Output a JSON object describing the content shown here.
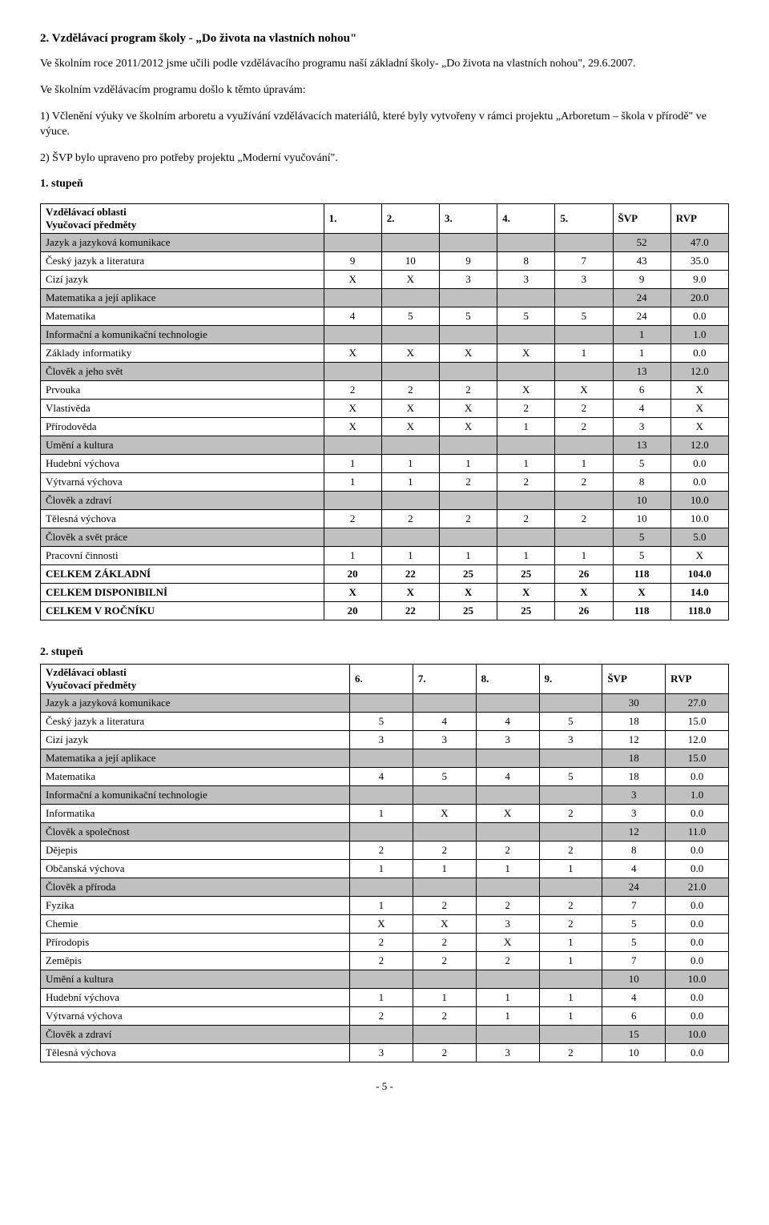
{
  "section_title": "2. Vzdělávací program školy - „Do života na vlastních nohou\"",
  "intro_p1": "Ve školním roce 2011/2012 jsme učili podle vzdělávacího programu naší základní školy- „Do života na vlastních nohou\", 29.6.2007.",
  "intro_p2": "Ve školním vzdělávacím programu došlo k těmto úpravám:",
  "list1": "1) Včlenění výuky ve školním arboretu a využívání vzdělávacích materiálů, které byly vytvořeny v rámci projektu „Arboretum – škola v přírodě\" ve výuce.",
  "list2": "2) ŠVP bylo upraveno pro potřeby projektu „Moderní vyučování\".",
  "stage1_label": "1. stupeň",
  "t1": {
    "header_label1": "Vzdělávací oblasti",
    "header_label2": "Vyučovací předměty",
    "cols": [
      "1.",
      "2.",
      "3.",
      "4.",
      "5.",
      "ŠVP",
      "RVP"
    ],
    "rows": [
      {
        "shaded": true,
        "bold": false,
        "label": "Jazyk a jazyková komunikace",
        "c": [
          "",
          "",
          "",
          "",
          "",
          "52",
          "47.0"
        ]
      },
      {
        "shaded": false,
        "bold": false,
        "label": "Český jazyk a literatura",
        "c": [
          "9",
          "10",
          "9",
          "8",
          "7",
          "43",
          "35.0"
        ]
      },
      {
        "shaded": false,
        "bold": false,
        "label": "Cizí jazyk",
        "c": [
          "X",
          "X",
          "3",
          "3",
          "3",
          "9",
          "9.0"
        ]
      },
      {
        "shaded": true,
        "bold": false,
        "label": "Matematika a její aplikace",
        "c": [
          "",
          "",
          "",
          "",
          "",
          "24",
          "20.0"
        ]
      },
      {
        "shaded": false,
        "bold": false,
        "label": "Matematika",
        "c": [
          "4",
          "5",
          "5",
          "5",
          "5",
          "24",
          "0.0"
        ]
      },
      {
        "shaded": true,
        "bold": false,
        "label": "Informační a komunikační technologie",
        "c": [
          "",
          "",
          "",
          "",
          "",
          "1",
          "1.0"
        ]
      },
      {
        "shaded": false,
        "bold": false,
        "label": "Základy informatiky",
        "c": [
          "X",
          "X",
          "X",
          "X",
          "1",
          "1",
          "0.0"
        ]
      },
      {
        "shaded": true,
        "bold": false,
        "label": "Člověk a jeho svět",
        "c": [
          "",
          "",
          "",
          "",
          "",
          "13",
          "12.0"
        ]
      },
      {
        "shaded": false,
        "bold": false,
        "label": "Prvouka",
        "c": [
          "2",
          "2",
          "2",
          "X",
          "X",
          "6",
          "X"
        ]
      },
      {
        "shaded": false,
        "bold": false,
        "label": "Vlastivěda",
        "c": [
          "X",
          "X",
          "X",
          "2",
          "2",
          "4",
          "X"
        ]
      },
      {
        "shaded": false,
        "bold": false,
        "label": "Přírodověda",
        "c": [
          "X",
          "X",
          "X",
          "1",
          "2",
          "3",
          "X"
        ]
      },
      {
        "shaded": true,
        "bold": false,
        "label": "Umění a kultura",
        "c": [
          "",
          "",
          "",
          "",
          "",
          "13",
          "12.0"
        ]
      },
      {
        "shaded": false,
        "bold": false,
        "label": "Hudební výchova",
        "c": [
          "1",
          "1",
          "1",
          "1",
          "1",
          "5",
          "0.0"
        ]
      },
      {
        "shaded": false,
        "bold": false,
        "label": "Výtvarná výchova",
        "c": [
          "1",
          "1",
          "2",
          "2",
          "2",
          "8",
          "0.0"
        ]
      },
      {
        "shaded": true,
        "bold": false,
        "label": "Člověk a zdraví",
        "c": [
          "",
          "",
          "",
          "",
          "",
          "10",
          "10.0"
        ]
      },
      {
        "shaded": false,
        "bold": false,
        "label": "Tělesná výchova",
        "c": [
          "2",
          "2",
          "2",
          "2",
          "2",
          "10",
          "10.0"
        ]
      },
      {
        "shaded": true,
        "bold": false,
        "label": "Člověk a svět práce",
        "c": [
          "",
          "",
          "",
          "",
          "",
          "5",
          "5.0"
        ]
      },
      {
        "shaded": false,
        "bold": false,
        "label": "Pracovní činnosti",
        "c": [
          "1",
          "1",
          "1",
          "1",
          "1",
          "5",
          "X"
        ]
      },
      {
        "shaded": false,
        "bold": true,
        "label": "CELKEM ZÁKLADNÍ",
        "c": [
          "20",
          "22",
          "25",
          "25",
          "26",
          "118",
          "104.0"
        ]
      },
      {
        "shaded": false,
        "bold": true,
        "label": "CELKEM DISPONIBILNÍ",
        "c": [
          "X",
          "X",
          "X",
          "X",
          "X",
          "X",
          "14.0"
        ]
      },
      {
        "shaded": false,
        "bold": true,
        "label": "CELKEM V ROČNÍKU",
        "c": [
          "20",
          "22",
          "25",
          "25",
          "26",
          "118",
          "118.0"
        ]
      }
    ]
  },
  "stage2_label": "2. stupeň",
  "t2": {
    "header_label1": "Vzdělávací oblasti",
    "header_label2": "Vyučovací předměty",
    "cols": [
      "6.",
      "7.",
      "8.",
      "9.",
      "ŠVP",
      "RVP"
    ],
    "rows": [
      {
        "shaded": true,
        "bold": false,
        "label": "Jazyk a jazyková komunikace",
        "c": [
          "",
          "",
          "",
          "",
          "30",
          "27.0"
        ]
      },
      {
        "shaded": false,
        "bold": false,
        "label": "Český jazyk a literatura",
        "c": [
          "5",
          "4",
          "4",
          "5",
          "18",
          "15.0"
        ]
      },
      {
        "shaded": false,
        "bold": false,
        "label": "Cizí jazyk",
        "c": [
          "3",
          "3",
          "3",
          "3",
          "12",
          "12.0"
        ]
      },
      {
        "shaded": true,
        "bold": false,
        "label": "Matematika a její aplikace",
        "c": [
          "",
          "",
          "",
          "",
          "18",
          "15.0"
        ]
      },
      {
        "shaded": false,
        "bold": false,
        "label": "Matematika",
        "c": [
          "4",
          "5",
          "4",
          "5",
          "18",
          "0.0"
        ]
      },
      {
        "shaded": true,
        "bold": false,
        "label": "Informační a komunikační technologie",
        "c": [
          "",
          "",
          "",
          "",
          "3",
          "1.0"
        ]
      },
      {
        "shaded": false,
        "bold": false,
        "label": "Informatika",
        "c": [
          "1",
          "X",
          "X",
          "2",
          "3",
          "0.0"
        ]
      },
      {
        "shaded": true,
        "bold": false,
        "label": "Člověk a společnost",
        "c": [
          "",
          "",
          "",
          "",
          "12",
          "11.0"
        ]
      },
      {
        "shaded": false,
        "bold": false,
        "label": "Dějepis",
        "c": [
          "2",
          "2",
          "2",
          "2",
          "8",
          "0.0"
        ]
      },
      {
        "shaded": false,
        "bold": false,
        "label": "Občanská výchova",
        "c": [
          "1",
          "1",
          "1",
          "1",
          "4",
          "0.0"
        ]
      },
      {
        "shaded": true,
        "bold": false,
        "label": "Člověk a příroda",
        "c": [
          "",
          "",
          "",
          "",
          "24",
          "21.0"
        ]
      },
      {
        "shaded": false,
        "bold": false,
        "label": "Fyzika",
        "c": [
          "1",
          "2",
          "2",
          "2",
          "7",
          "0.0"
        ]
      },
      {
        "shaded": false,
        "bold": false,
        "label": "Chemie",
        "c": [
          "X",
          "X",
          "3",
          "2",
          "5",
          "0.0"
        ]
      },
      {
        "shaded": false,
        "bold": false,
        "label": "Přírodopis",
        "c": [
          "2",
          "2",
          "X",
          "1",
          "5",
          "0.0"
        ]
      },
      {
        "shaded": false,
        "bold": false,
        "label": "Zeměpis",
        "c": [
          "2",
          "2",
          "2",
          "1",
          "7",
          "0.0"
        ]
      },
      {
        "shaded": true,
        "bold": false,
        "label": "Umění a kultura",
        "c": [
          "",
          "",
          "",
          "",
          "10",
          "10.0"
        ]
      },
      {
        "shaded": false,
        "bold": false,
        "label": "Hudební výchova",
        "c": [
          "1",
          "1",
          "1",
          "1",
          "4",
          "0.0"
        ]
      },
      {
        "shaded": false,
        "bold": false,
        "label": "Výtvarná výchova",
        "c": [
          "2",
          "2",
          "1",
          "1",
          "6",
          "0.0"
        ]
      },
      {
        "shaded": true,
        "bold": false,
        "label": "Člověk a zdraví",
        "c": [
          "",
          "",
          "",
          "",
          "15",
          "10.0"
        ]
      },
      {
        "shaded": false,
        "bold": false,
        "label": "Tělesná výchova",
        "c": [
          "3",
          "2",
          "3",
          "2",
          "10",
          "0.0"
        ]
      }
    ]
  },
  "page_number": "- 5 -"
}
